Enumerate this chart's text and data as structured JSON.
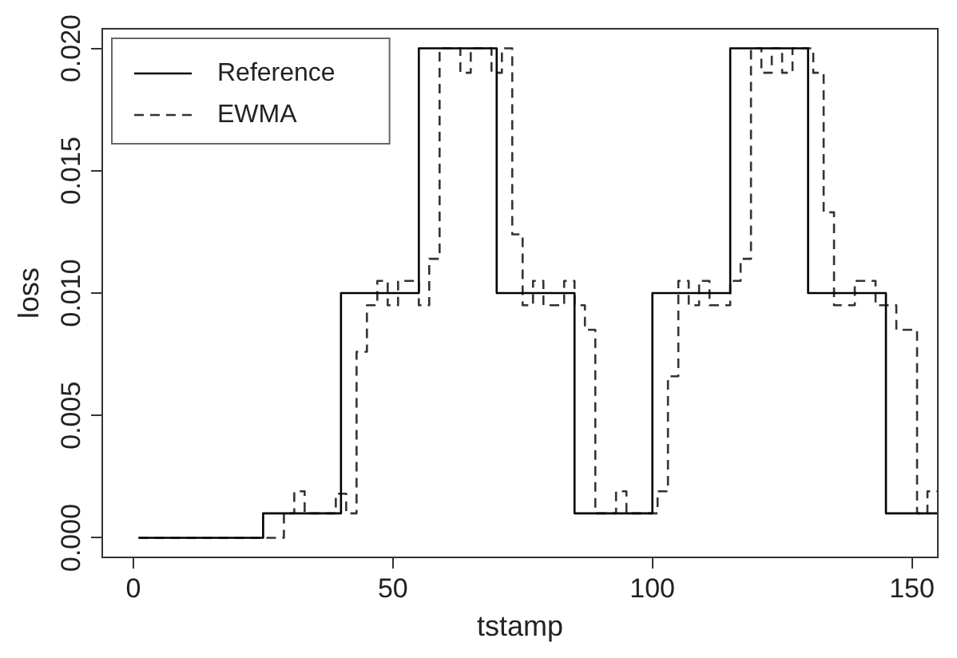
{
  "chart_data": {
    "type": "step",
    "xlabel": "tstamp",
    "ylabel": "loss",
    "xlim": [
      -6,
      155
    ],
    "xticks": [
      0,
      50,
      100,
      150
    ],
    "ylim": [
      -0.0008,
      0.0208
    ],
    "yticks": [
      {
        "value": 0,
        "label": "0.000"
      },
      {
        "value": 0.005,
        "label": "0.005"
      },
      {
        "value": 0.01,
        "label": "0.010"
      },
      {
        "value": 0.015,
        "label": "0.015"
      },
      {
        "value": 0.02,
        "label": "0.020"
      }
    ],
    "grid": false,
    "legend": "top left",
    "series": [
      {
        "name": "Reference",
        "color": "#000000",
        "line_style": "solid",
        "x": [
          1,
          25,
          40,
          55,
          70,
          85,
          100,
          115,
          130,
          145,
          155
        ],
        "values": [
          0,
          0.001,
          0.01,
          0.02,
          0.01,
          0.001,
          0.01,
          0.02,
          0.01,
          0.001,
          0.001
        ]
      },
      {
        "name": "EWMA",
        "color": "#333333",
        "line_style": "dashed",
        "x": [
          1,
          29,
          31,
          33,
          39,
          41,
          43,
          45,
          47,
          49,
          51,
          55,
          57,
          59,
          63,
          65,
          69,
          71,
          73,
          75,
          77,
          79,
          83,
          85,
          87,
          89,
          93,
          95,
          101,
          103,
          105,
          107,
          109,
          111,
          115,
          117,
          119,
          121,
          123,
          125,
          127,
          131,
          133,
          135,
          139,
          143,
          147,
          151,
          153,
          155
        ],
        "values": [
          0,
          0.001,
          0.0019,
          0.001,
          0.0018,
          0.001,
          0.0076,
          0.0095,
          0.0105,
          0.0095,
          0.0105,
          0.0095,
          0.0114,
          0.02,
          0.019,
          0.02,
          0.019,
          0.02,
          0.0124,
          0.0095,
          0.0105,
          0.0095,
          0.0105,
          0.0095,
          0.0085,
          0.001,
          0.0019,
          0.001,
          0.0019,
          0.0066,
          0.0105,
          0.0095,
          0.0105,
          0.0095,
          0.0105,
          0.0114,
          0.02,
          0.019,
          0.02,
          0.019,
          0.02,
          0.019,
          0.0133,
          0.0095,
          0.0105,
          0.0095,
          0.0085,
          0.001,
          0.0019,
          0.0019
        ]
      }
    ]
  }
}
